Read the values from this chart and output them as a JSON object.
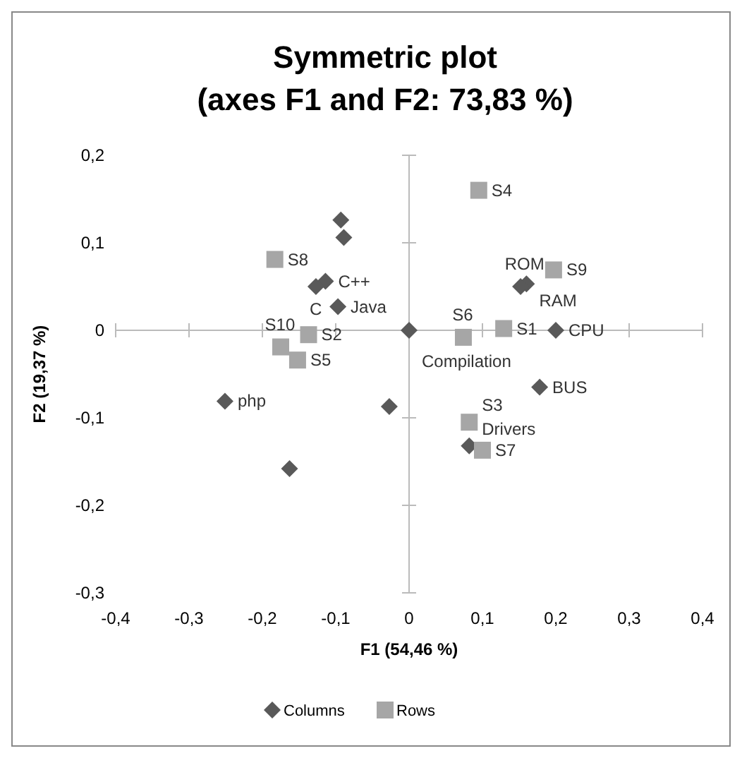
{
  "chart_data": {
    "type": "scatter",
    "title": "Symmetric plot\n(axes F1 and F2: 73,83 %)",
    "xlabel": "F1 (54,46 %)",
    "ylabel": "F2 (19,37 %)",
    "xlim": [
      -0.4,
      0.4
    ],
    "ylim": [
      -0.3,
      0.2
    ],
    "xticks": [
      {
        "value": -0.4,
        "label": "-0,4"
      },
      {
        "value": -0.3,
        "label": "-0,3"
      },
      {
        "value": -0.2,
        "label": "-0,2"
      },
      {
        "value": -0.1,
        "label": "-0,1"
      },
      0,
      {
        "value": 0.1,
        "label": "0,1"
      },
      {
        "value": 0.2,
        "label": "0,2"
      },
      {
        "value": 0.3,
        "label": "0,3"
      },
      {
        "value": 0.4,
        "label": "0,4"
      }
    ],
    "yticks": [
      {
        "value": -0.3,
        "label": "-0,3"
      },
      {
        "value": -0.2,
        "label": "-0,2"
      },
      {
        "value": -0.1,
        "label": "-0,1"
      },
      0,
      {
        "value": 0.1,
        "label": "0,1"
      },
      {
        "value": 0.2,
        "label": "0,2"
      }
    ],
    "legend": "bottom",
    "series": [
      {
        "name": "Columns",
        "color": "#595959",
        "marker": "diamond",
        "x": [
          -0.093,
          -0.089,
          -0.114,
          -0.127,
          -0.097,
          0,
          -0.251,
          -0.027,
          -0.163,
          0.16,
          0.152,
          0.2,
          0.178,
          0.082
        ],
        "values": [
          0.126,
          0.106,
          0.056,
          0.05,
          0.027,
          0,
          -0.081,
          -0.087,
          -0.158,
          0.053,
          0.05,
          0,
          -0.065,
          -0.132
        ]
      },
      {
        "name": "Rows",
        "color": "#a6a6a6",
        "marker": "square",
        "x": [
          0.095,
          0.197,
          0.074,
          0.129,
          0.082,
          0.1,
          -0.183,
          -0.137,
          -0.175,
          -0.152
        ],
        "values": [
          0.16,
          0.069,
          -0.008,
          0.002,
          -0.105,
          -0.137,
          0.081,
          -0.005,
          -0.019,
          -0.034
        ]
      }
    ],
    "annotations": [
      {
        "text": "C++",
        "x": -0.114,
        "y": 0.056
      },
      {
        "text": "C",
        "x": -0.127,
        "y": 0.05
      },
      {
        "text": "Java",
        "x": -0.097,
        "y": 0.027
      },
      {
        "text": "Compilation",
        "x": 0,
        "y": 0
      },
      {
        "text": "php",
        "x": -0.251,
        "y": -0.081
      },
      {
        "text": "RAM",
        "x": 0.16,
        "y": 0.053
      },
      {
        "text": "ROM",
        "x": 0.152,
        "y": 0.05
      },
      {
        "text": "CPU",
        "x": 0.2,
        "y": 0
      },
      {
        "text": "BUS",
        "x": 0.178,
        "y": -0.065
      },
      {
        "text": "Drivers",
        "x": 0.082,
        "y": -0.132
      },
      {
        "text": "S4",
        "x": 0.095,
        "y": 0.16
      },
      {
        "text": "S9",
        "x": 0.197,
        "y": 0.069
      },
      {
        "text": "S6",
        "x": 0.074,
        "y": -0.008
      },
      {
        "text": "S1",
        "x": 0.129,
        "y": 0.002
      },
      {
        "text": "S3",
        "x": 0.082,
        "y": -0.105
      },
      {
        "text": "S7",
        "x": 0.1,
        "y": -0.137
      },
      {
        "text": "S8",
        "x": -0.183,
        "y": 0.081
      },
      {
        "text": "S2",
        "x": -0.137,
        "y": -0.005
      },
      {
        "text": "S10",
        "x": -0.175,
        "y": -0.019
      },
      {
        "text": "S5",
        "x": -0.152,
        "y": -0.034
      }
    ]
  }
}
